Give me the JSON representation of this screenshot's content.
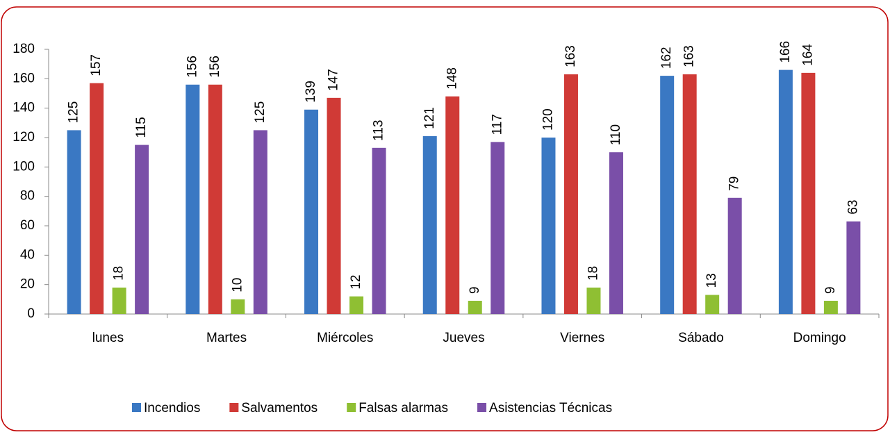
{
  "chart_data": {
    "type": "bar",
    "categories": [
      "lunes",
      "Martes",
      "Miércoles",
      "Jueves",
      "Viernes",
      "Sábado",
      "Domingo"
    ],
    "series": [
      {
        "name": "Incendios",
        "color": "#3a78c3",
        "values": [
          125,
          156,
          139,
          121,
          120,
          162,
          166
        ]
      },
      {
        "name": "Salvamentos",
        "color": "#d03a36",
        "values": [
          157,
          156,
          147,
          148,
          163,
          163,
          164
        ]
      },
      {
        "name": "Falsas alarmas",
        "color": "#8fbf33",
        "values": [
          18,
          10,
          12,
          9,
          18,
          13,
          9
        ]
      },
      {
        "name": "Asistencias Técnicas",
        "color": "#7a4fa8",
        "values": [
          115,
          125,
          113,
          117,
          110,
          79,
          63
        ]
      }
    ],
    "ylim": [
      0,
      180
    ],
    "yticks": [
      0,
      20,
      40,
      60,
      80,
      100,
      120,
      140,
      160,
      180
    ],
    "legend": "bottom",
    "grid": false
  }
}
